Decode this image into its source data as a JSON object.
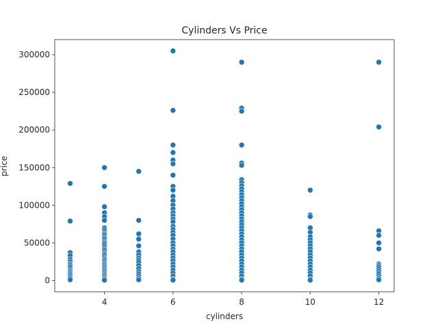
{
  "chart_data": {
    "type": "scatter",
    "title": "Cylinders Vs Price",
    "xlabel": "cylinders",
    "ylabel": "price",
    "xlim": [
      2.55,
      12.45
    ],
    "ylim": [
      -15000,
      320000
    ],
    "xticks": [
      4,
      6,
      8,
      10,
      12
    ],
    "yticks": [
      0,
      50000,
      100000,
      150000,
      200000,
      250000,
      300000
    ],
    "grid": false,
    "legend": "none",
    "color": "#1f77b4",
    "series": [
      {
        "points": [
          [
            3,
            129000
          ],
          [
            3,
            79000
          ],
          [
            3,
            37000
          ],
          [
            3,
            33000
          ],
          [
            3,
            28000
          ],
          [
            3,
            25000
          ],
          [
            3,
            22000
          ],
          [
            3,
            20000
          ],
          [
            3,
            18000
          ],
          [
            3,
            15000
          ],
          [
            3,
            13000
          ],
          [
            3,
            11000
          ],
          [
            3,
            9000
          ],
          [
            3,
            7000
          ],
          [
            3,
            5000
          ],
          [
            3,
            3000
          ],
          [
            3,
            1000
          ],
          [
            4,
            150000
          ],
          [
            4,
            125000
          ],
          [
            4,
            98000
          ],
          [
            4,
            90000
          ],
          [
            4,
            85000
          ],
          [
            4,
            80000
          ],
          [
            4,
            70000
          ],
          [
            4,
            67000
          ],
          [
            4,
            64000
          ],
          [
            4,
            62000
          ],
          [
            4,
            60000
          ],
          [
            4,
            57000
          ],
          [
            4,
            55000
          ],
          [
            4,
            52000
          ],
          [
            4,
            50000
          ],
          [
            4,
            48000
          ],
          [
            4,
            45000
          ],
          [
            4,
            42000
          ],
          [
            4,
            40000
          ],
          [
            4,
            37000
          ],
          [
            4,
            35000
          ],
          [
            4,
            33000
          ],
          [
            4,
            30000
          ],
          [
            4,
            28000
          ],
          [
            4,
            26000
          ],
          [
            4,
            24000
          ],
          [
            4,
            22000
          ],
          [
            4,
            20000
          ],
          [
            4,
            18000
          ],
          [
            4,
            16000
          ],
          [
            4,
            14000
          ],
          [
            4,
            12000
          ],
          [
            4,
            10000
          ],
          [
            4,
            8000
          ],
          [
            4,
            6000
          ],
          [
            4,
            4000
          ],
          [
            4,
            2000
          ],
          [
            4,
            500
          ],
          [
            5,
            145000
          ],
          [
            5,
            80000
          ],
          [
            5,
            62000
          ],
          [
            5,
            55000
          ],
          [
            5,
            46000
          ],
          [
            5,
            38000
          ],
          [
            5,
            34000
          ],
          [
            5,
            30000
          ],
          [
            5,
            27000
          ],
          [
            5,
            24000
          ],
          [
            5,
            20000
          ],
          [
            5,
            16000
          ],
          [
            5,
            12000
          ],
          [
            5,
            9000
          ],
          [
            5,
            6000
          ],
          [
            5,
            3000
          ],
          [
            5,
            1000
          ],
          [
            6,
            305000
          ],
          [
            6,
            226000
          ],
          [
            6,
            180000
          ],
          [
            6,
            170000
          ],
          [
            6,
            160000
          ],
          [
            6,
            155000
          ],
          [
            6,
            140000
          ],
          [
            6,
            125000
          ],
          [
            6,
            120000
          ],
          [
            6,
            112000
          ],
          [
            6,
            106000
          ],
          [
            6,
            100000
          ],
          [
            6,
            95000
          ],
          [
            6,
            90000
          ],
          [
            6,
            86000
          ],
          [
            6,
            82000
          ],
          [
            6,
            78000
          ],
          [
            6,
            72000
          ],
          [
            6,
            68000
          ],
          [
            6,
            64000
          ],
          [
            6,
            60000
          ],
          [
            6,
            55000
          ],
          [
            6,
            50000
          ],
          [
            6,
            46000
          ],
          [
            6,
            42000
          ],
          [
            6,
            38000
          ],
          [
            6,
            34000
          ],
          [
            6,
            30000
          ],
          [
            6,
            26000
          ],
          [
            6,
            22000
          ],
          [
            6,
            18000
          ],
          [
            6,
            14000
          ],
          [
            6,
            10000
          ],
          [
            6,
            6000
          ],
          [
            6,
            2000
          ],
          [
            6,
            500
          ],
          [
            8,
            290000
          ],
          [
            8,
            229000
          ],
          [
            8,
            225000
          ],
          [
            8,
            180000
          ],
          [
            8,
            156000
          ],
          [
            8,
            153000
          ],
          [
            8,
            134000
          ],
          [
            8,
            130000
          ],
          [
            8,
            126000
          ],
          [
            8,
            122000
          ],
          [
            8,
            118000
          ],
          [
            8,
            114000
          ],
          [
            8,
            110000
          ],
          [
            8,
            106000
          ],
          [
            8,
            102000
          ],
          [
            8,
            98000
          ],
          [
            8,
            94000
          ],
          [
            8,
            90000
          ],
          [
            8,
            86000
          ],
          [
            8,
            82000
          ],
          [
            8,
            78000
          ],
          [
            8,
            74000
          ],
          [
            8,
            70000
          ],
          [
            8,
            66000
          ],
          [
            8,
            62000
          ],
          [
            8,
            58000
          ],
          [
            8,
            54000
          ],
          [
            8,
            50000
          ],
          [
            8,
            46000
          ],
          [
            8,
            42000
          ],
          [
            8,
            38000
          ],
          [
            8,
            34000
          ],
          [
            8,
            30000
          ],
          [
            8,
            26000
          ],
          [
            8,
            22000
          ],
          [
            8,
            18000
          ],
          [
            8,
            14000
          ],
          [
            8,
            10000
          ],
          [
            8,
            6000
          ],
          [
            8,
            2000
          ],
          [
            8,
            500
          ],
          [
            10,
            120000
          ],
          [
            10,
            87000
          ],
          [
            10,
            85000
          ],
          [
            10,
            70000
          ],
          [
            10,
            64000
          ],
          [
            10,
            58000
          ],
          [
            10,
            54000
          ],
          [
            10,
            50000
          ],
          [
            10,
            46000
          ],
          [
            10,
            42000
          ],
          [
            10,
            38000
          ],
          [
            10,
            34000
          ],
          [
            10,
            30000
          ],
          [
            10,
            26000
          ],
          [
            10,
            22000
          ],
          [
            10,
            18000
          ],
          [
            10,
            14000
          ],
          [
            10,
            10000
          ],
          [
            10,
            6000
          ],
          [
            10,
            2000
          ],
          [
            10,
            500
          ],
          [
            12,
            290000
          ],
          [
            12,
            204000
          ],
          [
            12,
            66000
          ],
          [
            12,
            60000
          ],
          [
            12,
            50000
          ],
          [
            12,
            42000
          ],
          [
            12,
            22000
          ],
          [
            12,
            20000
          ],
          [
            12,
            18000
          ],
          [
            12,
            15000
          ],
          [
            12,
            12000
          ],
          [
            12,
            9000
          ],
          [
            12,
            6000
          ],
          [
            12,
            3000
          ],
          [
            12,
            1000
          ]
        ]
      }
    ]
  }
}
